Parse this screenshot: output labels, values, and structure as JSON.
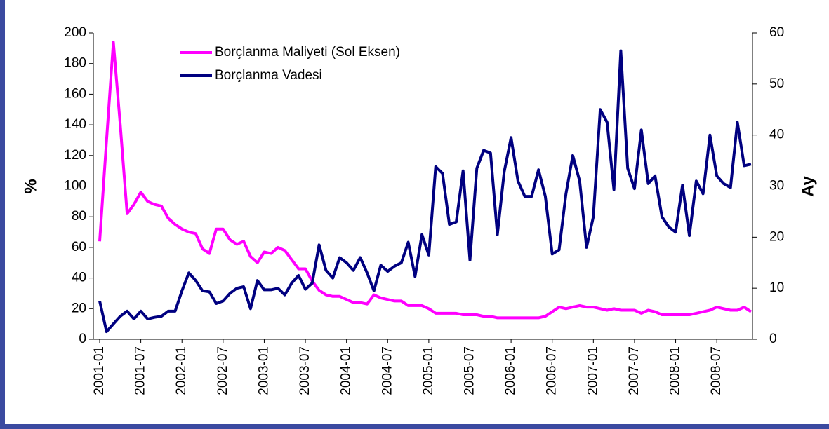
{
  "chart_data": {
    "type": "line",
    "categories": [
      "2001-01",
      null,
      null,
      null,
      null,
      null,
      "2001-07",
      null,
      null,
      null,
      null,
      null,
      "2002-01",
      null,
      null,
      null,
      null,
      null,
      "2002-07",
      null,
      null,
      null,
      null,
      null,
      "2003-01",
      null,
      null,
      null,
      null,
      null,
      "2003-07",
      null,
      null,
      null,
      null,
      null,
      "2004-01",
      null,
      null,
      null,
      null,
      null,
      "2004-07",
      null,
      null,
      null,
      null,
      null,
      "2005-01",
      null,
      null,
      null,
      null,
      null,
      "2005-07",
      null,
      null,
      null,
      null,
      null,
      "2006-01",
      null,
      null,
      null,
      null,
      null,
      "2006-07",
      null,
      null,
      null,
      null,
      null,
      "2007-01",
      null,
      null,
      null,
      null,
      null,
      "2007-07",
      null,
      null,
      null,
      null,
      null,
      "2008-01",
      null,
      null,
      null,
      null,
      null,
      "2008-07",
      null,
      null,
      null,
      null,
      null
    ],
    "series": [
      {
        "name": "Borçlanma Maliyeti (Sol Eksen)",
        "color": "#ff00ff",
        "axis": "y",
        "values": [
          64,
          130,
          194,
          140,
          82,
          88,
          96,
          90,
          88,
          87,
          79,
          75,
          72,
          70,
          69,
          59,
          56,
          72,
          72,
          65,
          62,
          64,
          54,
          50,
          57,
          56,
          60,
          58,
          52,
          46,
          46,
          38,
          32,
          29,
          28,
          28,
          26,
          24,
          24,
          23,
          29,
          27,
          26,
          25,
          25,
          22,
          22,
          22,
          20,
          17,
          17,
          17,
          17,
          16,
          16,
          16,
          15,
          15,
          14,
          14,
          14,
          14,
          14,
          14,
          14,
          15,
          18,
          21,
          20,
          21,
          22,
          21,
          21,
          20,
          19,
          20,
          19,
          19,
          19,
          17,
          19,
          18,
          16,
          16,
          16,
          16,
          16,
          17,
          18,
          19,
          21,
          20,
          19,
          19,
          21,
          18
        ]
      },
      {
        "name": "Borçlanma Vadesi",
        "color": "#000080",
        "axis": "y2",
        "values": [
          7.5,
          1.5,
          3,
          4.5,
          5.5,
          4,
          5.5,
          4,
          4.3,
          4.5,
          5.5,
          5.5,
          9.5,
          13,
          11.5,
          9.5,
          9.3,
          7,
          7.5,
          9,
          10,
          10.3,
          6,
          11.5,
          9.7,
          9.7,
          10,
          8.7,
          11,
          12.5,
          9.8,
          11,
          18.5,
          13.5,
          12,
          16,
          15,
          13.5,
          16,
          13,
          9.5,
          14.5,
          13.3,
          14.3,
          15,
          19,
          12.3,
          20.5,
          16.5,
          33.8,
          32.5,
          22.5,
          23,
          33,
          15.5,
          33.5,
          37,
          36.5,
          20.5,
          32.8,
          39.5,
          31,
          28,
          28,
          33.2,
          28,
          16.7,
          17.5,
          28.5,
          36,
          31,
          18,
          24,
          45,
          42.5,
          29.3,
          56.5,
          33.5,
          29.5,
          41,
          30.5,
          32,
          24,
          22,
          21,
          30.2,
          20.3,
          31,
          28.5,
          40,
          32,
          30.5,
          29.7,
          42.5,
          34,
          34.3
        ]
      }
    ],
    "ylabel": "%",
    "y2label": "Ay",
    "ylim": [
      0,
      200
    ],
    "yticks": [
      0,
      20,
      40,
      60,
      80,
      100,
      120,
      140,
      160,
      180,
      200
    ],
    "y2lim": [
      0,
      60
    ],
    "y2ticks": [
      0,
      10,
      20,
      30,
      40,
      50,
      60
    ],
    "legend": "top"
  }
}
